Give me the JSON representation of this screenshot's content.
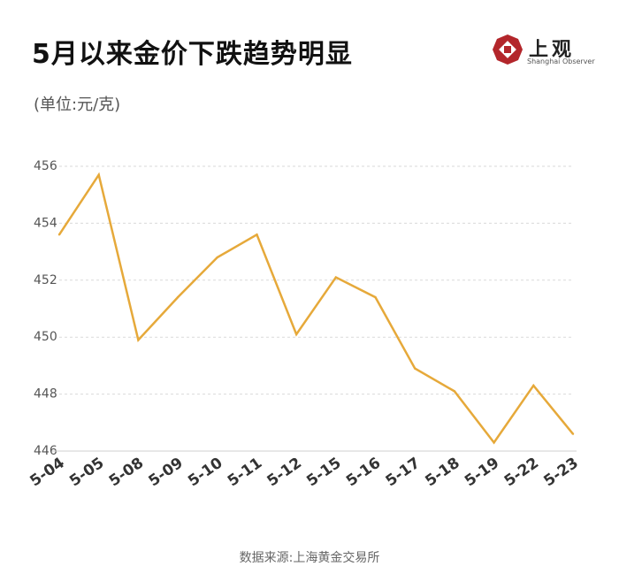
{
  "header": {
    "title": "5月以来金价下跌趋势明显",
    "unit_label": "(单位:元/克)"
  },
  "logo": {
    "cn_text": "上观",
    "en_text": "Shanghai Observer",
    "color": "#b3262b"
  },
  "footer": {
    "source": "数据来源:上海黄金交易所"
  },
  "chart_data": {
    "type": "line",
    "title": "5月以来金价下跌趋势明显",
    "xlabel": "",
    "ylabel": "(单位:元/克)",
    "categories": [
      "5-04",
      "5-05",
      "5-08",
      "5-09",
      "5-10",
      "5-11",
      "5-12",
      "5-15",
      "5-16",
      "5-17",
      "5-18",
      "5-19",
      "5-22",
      "5-23"
    ],
    "series": [
      {
        "values": [
          453.6,
          455.7,
          449.9,
          451.4,
          452.8,
          453.6,
          450.1,
          452.1,
          451.4,
          448.9,
          448.1,
          446.3,
          448.3,
          446.6
        ]
      }
    ],
    "ylim": [
      446,
      456
    ],
    "y_ticks": [
      "446",
      "448",
      "450",
      "452",
      "454",
      "456"
    ],
    "grid": true,
    "line_color": "#e6a93a",
    "grid_color": "#d9d9d9",
    "legend": "none"
  }
}
